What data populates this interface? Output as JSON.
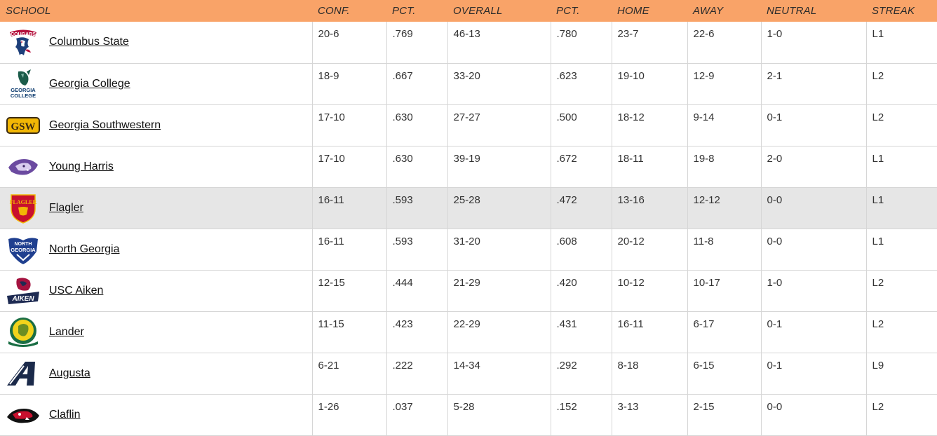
{
  "headers": {
    "school": "SCHOOL",
    "conf": "CONF.",
    "pct1": "PCT.",
    "overall": "OVERALL",
    "pct2": "PCT.",
    "home": "HOME",
    "away": "AWAY",
    "neutral": "NEUTRAL",
    "streak": "STREAK"
  },
  "colors": {
    "header_bg": "#f9a368",
    "highlight_row": "#e6e6e6"
  },
  "rows": [
    {
      "school": "Columbus State",
      "logo": "columbus-state-cougars-logo",
      "logo_text": "COUGARS",
      "conf": "20-6",
      "pct1": ".769",
      "overall": "46-13",
      "pct2": ".780",
      "home": "23-7",
      "away": "22-6",
      "neutral": "1-0",
      "streak": "L1"
    },
    {
      "school": "Georgia College",
      "logo": "georgia-college-logo",
      "logo_text": "GEORGIA COLLEGE",
      "conf": "18-9",
      "pct1": ".667",
      "overall": "33-20",
      "pct2": ".623",
      "home": "19-10",
      "away": "12-9",
      "neutral": "2-1",
      "streak": "L2"
    },
    {
      "school": "Georgia Southwestern",
      "logo": "gsw-logo",
      "logo_text": "GSW",
      "conf": "17-10",
      "pct1": ".630",
      "overall": "27-27",
      "pct2": ".500",
      "home": "18-12",
      "away": "9-14",
      "neutral": "0-1",
      "streak": "L2"
    },
    {
      "school": "Young Harris",
      "logo": "young-harris-logo",
      "logo_text": "",
      "conf": "17-10",
      "pct1": ".630",
      "overall": "39-19",
      "pct2": ".672",
      "home": "18-11",
      "away": "19-8",
      "neutral": "2-0",
      "streak": "L1"
    },
    {
      "school": "Flagler",
      "logo": "flagler-saints-logo",
      "logo_text": "FLAGLER",
      "conf": "16-11",
      "pct1": ".593",
      "overall": "25-28",
      "pct2": ".472",
      "home": "13-16",
      "away": "12-12",
      "neutral": "0-0",
      "streak": "L1"
    },
    {
      "school": "North Georgia",
      "logo": "north-georgia-logo",
      "logo_text": "NORTH GEORGIA",
      "conf": "16-11",
      "pct1": ".593",
      "overall": "31-20",
      "pct2": ".608",
      "home": "20-12",
      "away": "11-8",
      "neutral": "0-0",
      "streak": "L1"
    },
    {
      "school": "USC Aiken",
      "logo": "usc-aiken-logo",
      "logo_text": "AIKEN",
      "conf": "12-15",
      "pct1": ".444",
      "overall": "21-29",
      "pct2": ".420",
      "home": "10-12",
      "away": "10-17",
      "neutral": "1-0",
      "streak": "L2"
    },
    {
      "school": "Lander",
      "logo": "lander-logo",
      "logo_text": "",
      "conf": "11-15",
      "pct1": ".423",
      "overall": "22-29",
      "pct2": ".431",
      "home": "16-11",
      "away": "6-17",
      "neutral": "0-1",
      "streak": "L2"
    },
    {
      "school": "Augusta",
      "logo": "augusta-logo",
      "logo_text": "",
      "conf": "6-21",
      "pct1": ".222",
      "overall": "14-34",
      "pct2": ".292",
      "home": "8-18",
      "away": "6-15",
      "neutral": "0-1",
      "streak": "L9"
    },
    {
      "school": "Claflin",
      "logo": "claflin-logo",
      "logo_text": "",
      "conf": "1-26",
      "pct1": ".037",
      "overall": "5-28",
      "pct2": ".152",
      "home": "3-13",
      "away": "2-15",
      "neutral": "0-0",
      "streak": "L2"
    }
  ]
}
